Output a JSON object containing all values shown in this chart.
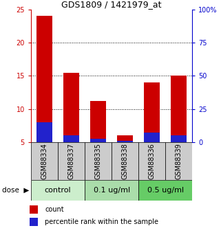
{
  "title": "GDS1809 / 1421979_at",
  "samples": [
    "GSM88334",
    "GSM88337",
    "GSM88335",
    "GSM88338",
    "GSM88336",
    "GSM88339"
  ],
  "red_values": [
    24.0,
    15.5,
    11.2,
    6.0,
    14.0,
    15.0
  ],
  "blue_values": [
    8.0,
    6.0,
    5.5,
    5.2,
    6.5,
    6.0
  ],
  "ylim": [
    5,
    25
  ],
  "yticks": [
    5,
    10,
    15,
    20,
    25
  ],
  "right_ylim": [
    0,
    100
  ],
  "right_yticks": [
    0,
    25,
    50,
    75,
    100
  ],
  "bar_width": 0.6,
  "red_color": "#cc0000",
  "blue_color": "#2222cc",
  "left_tick_color": "#cc0000",
  "right_tick_color": "#0000cc",
  "sample_box_color": "#cccccc",
  "group_defs": [
    {
      "label": "control",
      "start": 0,
      "end": 1,
      "color": "#cceecc"
    },
    {
      "label": "0.1 ug/ml",
      "start": 2,
      "end": 3,
      "color": "#aaddaa"
    },
    {
      "label": "0.5 ug/ml",
      "start": 4,
      "end": 5,
      "color": "#66cc66"
    }
  ],
  "dose_label": "dose",
  "legend_count": "count",
  "legend_pct": "percentile rank within the sample",
  "tick_fontsize": 7,
  "title_fontsize": 9,
  "label_fontsize": 7,
  "group_fontsize": 8,
  "legend_fontsize": 7
}
